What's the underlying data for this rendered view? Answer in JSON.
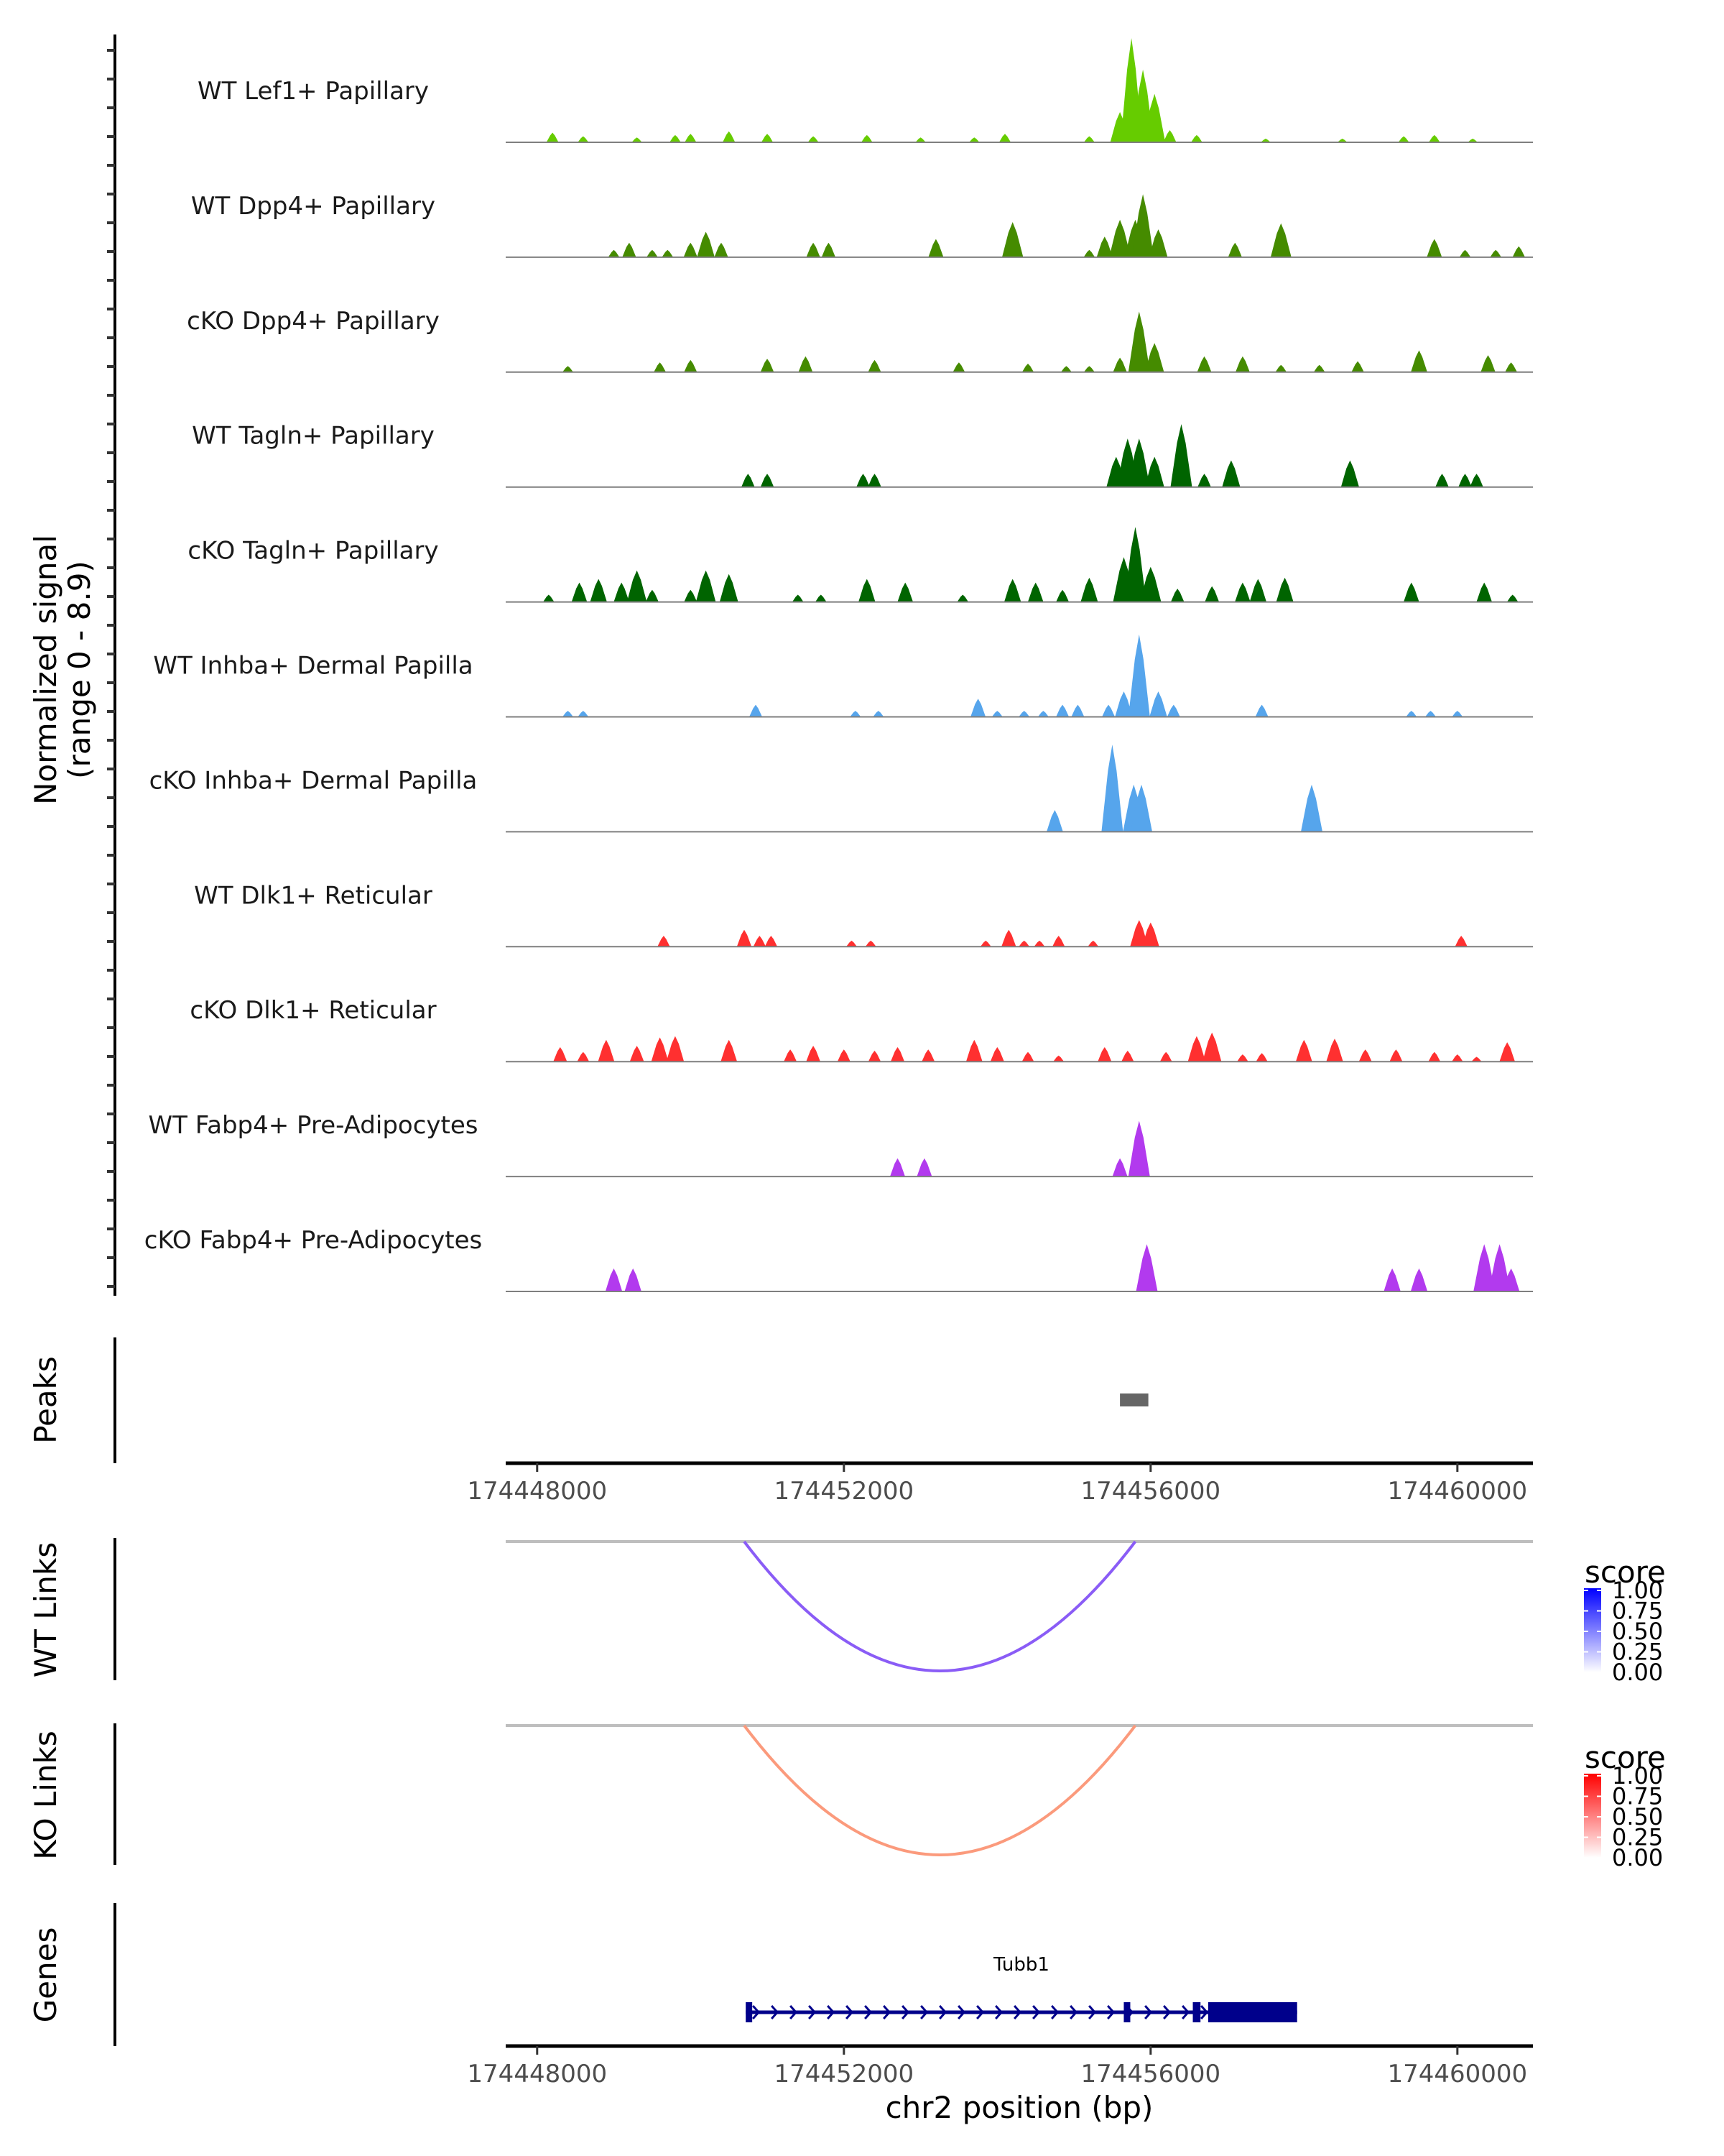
{
  "chart_data": {
    "type": "area",
    "title": "",
    "chromosome": "chr2",
    "xlabel": "chr2 position (bp)",
    "ylabel": "Normalized signal",
    "ylabel_sub": "(range 0 - 8.9)",
    "ylim": [
      0,
      8.9
    ],
    "xlim": [
      174447590,
      174460985
    ],
    "x_ticks": [
      174448000,
      174452000,
      174456000,
      174460000
    ],
    "x_tick_labels": [
      "174448000",
      "174452000",
      "174456000",
      "174460000"
    ],
    "coverage_tracks": [
      {
        "name": "WT Lef1+ Papillary",
        "color": "#66CC00",
        "peaks": [
          [
            174448200,
            0.8
          ],
          [
            174448600,
            0.5
          ],
          [
            174449300,
            0.4
          ],
          [
            174449800,
            0.6
          ],
          [
            174450000,
            0.7
          ],
          [
            174450500,
            0.9
          ],
          [
            174451000,
            0.7
          ],
          [
            174451600,
            0.5
          ],
          [
            174452300,
            0.6
          ],
          [
            174453000,
            0.4
          ],
          [
            174453700,
            0.4
          ],
          [
            174454100,
            0.7
          ],
          [
            174455200,
            0.5
          ],
          [
            174455600,
            2.5
          ],
          [
            174455750,
            8.6
          ],
          [
            174455900,
            6.0
          ],
          [
            174456050,
            4.0
          ],
          [
            174456250,
            1.0
          ],
          [
            174456600,
            0.6
          ],
          [
            174457500,
            0.3
          ],
          [
            174458500,
            0.3
          ],
          [
            174459300,
            0.5
          ],
          [
            174459700,
            0.6
          ],
          [
            174460200,
            0.3
          ]
        ]
      },
      {
        "name": "WT Dpp4+ Papillary",
        "color": "#458B00",
        "peaks": [
          [
            174449000,
            0.6
          ],
          [
            174449200,
            1.2
          ],
          [
            174449500,
            0.6
          ],
          [
            174449700,
            0.6
          ],
          [
            174450000,
            1.2
          ],
          [
            174450200,
            2.1
          ],
          [
            174450400,
            1.2
          ],
          [
            174451600,
            1.2
          ],
          [
            174451800,
            1.2
          ],
          [
            174453200,
            1.5
          ],
          [
            174454200,
            2.9
          ],
          [
            174455200,
            0.6
          ],
          [
            174455400,
            1.7
          ],
          [
            174455600,
            3.1
          ],
          [
            174455800,
            3.1
          ],
          [
            174455900,
            5.2
          ],
          [
            174456100,
            2.3
          ],
          [
            174457100,
            1.2
          ],
          [
            174457700,
            2.8
          ],
          [
            174459700,
            1.5
          ],
          [
            174460100,
            0.6
          ],
          [
            174460500,
            0.6
          ],
          [
            174460800,
            0.9
          ]
        ]
      },
      {
        "name": "cKO Dpp4+ Papillary",
        "color": "#458B00",
        "peaks": [
          [
            174448400,
            0.5
          ],
          [
            174449600,
            0.8
          ],
          [
            174450000,
            1.0
          ],
          [
            174451000,
            1.1
          ],
          [
            174451500,
            1.3
          ],
          [
            174452400,
            1.0
          ],
          [
            174453500,
            0.8
          ],
          [
            174454400,
            0.7
          ],
          [
            174454900,
            0.5
          ],
          [
            174455200,
            0.5
          ],
          [
            174455600,
            1.2
          ],
          [
            174455850,
            5.0
          ],
          [
            174456050,
            2.4
          ],
          [
            174456700,
            1.3
          ],
          [
            174457200,
            1.3
          ],
          [
            174457700,
            0.6
          ],
          [
            174458200,
            0.6
          ],
          [
            174458700,
            0.9
          ],
          [
            174459500,
            1.8
          ],
          [
            174460400,
            1.4
          ],
          [
            174460700,
            0.8
          ]
        ]
      },
      {
        "name": "WT Tagln+ Papillary",
        "color": "#006400",
        "peaks": [
          [
            174450750,
            1.1
          ],
          [
            174451000,
            1.1
          ],
          [
            174452250,
            1.1
          ],
          [
            174452400,
            1.1
          ],
          [
            174455550,
            2.5
          ],
          [
            174455700,
            4.0
          ],
          [
            174455850,
            4.0
          ],
          [
            174456050,
            2.5
          ],
          [
            174456400,
            5.2
          ],
          [
            174456700,
            1.1
          ],
          [
            174457050,
            2.2
          ],
          [
            174458600,
            2.2
          ],
          [
            174459800,
            1.1
          ],
          [
            174460100,
            1.1
          ],
          [
            174460250,
            1.1
          ]
        ]
      },
      {
        "name": "cKO Tagln+ Papillary",
        "color": "#006400",
        "peaks": [
          [
            174448150,
            0.6
          ],
          [
            174448550,
            1.6
          ],
          [
            174448800,
            1.9
          ],
          [
            174449100,
            1.6
          ],
          [
            174449300,
            2.6
          ],
          [
            174449500,
            1.0
          ],
          [
            174450000,
            1.0
          ],
          [
            174450200,
            2.6
          ],
          [
            174450500,
            2.3
          ],
          [
            174451400,
            0.6
          ],
          [
            174451700,
            0.6
          ],
          [
            174452300,
            1.9
          ],
          [
            174452800,
            1.6
          ],
          [
            174453550,
            0.6
          ],
          [
            174454200,
            1.9
          ],
          [
            174454500,
            1.6
          ],
          [
            174454850,
            1.0
          ],
          [
            174455200,
            2.0
          ],
          [
            174455650,
            3.7
          ],
          [
            174455800,
            6.2
          ],
          [
            174456000,
            2.9
          ],
          [
            174456350,
            1.1
          ],
          [
            174456800,
            1.3
          ],
          [
            174457200,
            1.6
          ],
          [
            174457400,
            1.9
          ],
          [
            174457750,
            2.0
          ],
          [
            174459400,
            1.6
          ],
          [
            174460350,
            1.6
          ],
          [
            174460720,
            0.6
          ]
        ]
      },
      {
        "name": "WT Inhba+ Dermal Papilla",
        "color": "#56A5EC",
        "peaks": [
          [
            174448400,
            0.5
          ],
          [
            174448600,
            0.5
          ],
          [
            174450850,
            1.0
          ],
          [
            174452150,
            0.5
          ],
          [
            174452450,
            0.5
          ],
          [
            174453750,
            1.5
          ],
          [
            174454000,
            0.5
          ],
          [
            174454350,
            0.5
          ],
          [
            174454600,
            0.5
          ],
          [
            174454850,
            1.0
          ],
          [
            174455050,
            1.0
          ],
          [
            174455450,
            1.0
          ],
          [
            174455650,
            2.1
          ],
          [
            174455850,
            6.8
          ],
          [
            174456100,
            2.1
          ],
          [
            174456300,
            1.0
          ],
          [
            174457450,
            1.0
          ],
          [
            174459400,
            0.5
          ],
          [
            174459650,
            0.5
          ],
          [
            174460000,
            0.5
          ]
        ]
      },
      {
        "name": "cKO Inhba+ Dermal Papilla",
        "color": "#56A5EC",
        "peaks": [
          [
            174454750,
            1.8
          ],
          [
            174455500,
            7.2
          ],
          [
            174455780,
            3.9
          ],
          [
            174455880,
            3.9
          ],
          [
            174458100,
            3.9
          ]
        ]
      },
      {
        "name": "WT Dlk1+ Reticular",
        "color": "#FF3030",
        "peaks": [
          [
            174449650,
            0.9
          ],
          [
            174450700,
            1.4
          ],
          [
            174450900,
            0.9
          ],
          [
            174451050,
            0.9
          ],
          [
            174452100,
            0.5
          ],
          [
            174452350,
            0.5
          ],
          [
            174453850,
            0.5
          ],
          [
            174454150,
            1.4
          ],
          [
            174454350,
            0.5
          ],
          [
            174454550,
            0.5
          ],
          [
            174454800,
            0.9
          ],
          [
            174455250,
            0.5
          ],
          [
            174455850,
            2.2
          ],
          [
            174456000,
            2.0
          ],
          [
            174460050,
            0.9
          ]
        ]
      },
      {
        "name": "cKO Dlk1+ Reticular",
        "color": "#FF3030",
        "peaks": [
          [
            174448300,
            1.2
          ],
          [
            174448600,
            0.8
          ],
          [
            174448900,
            1.8
          ],
          [
            174449300,
            1.3
          ],
          [
            174449600,
            2.0
          ],
          [
            174449800,
            2.1
          ],
          [
            174450500,
            1.8
          ],
          [
            174451300,
            1.0
          ],
          [
            174451600,
            1.3
          ],
          [
            174452000,
            1.0
          ],
          [
            174452400,
            0.9
          ],
          [
            174452700,
            1.2
          ],
          [
            174453100,
            1.0
          ],
          [
            174453700,
            1.8
          ],
          [
            174454000,
            1.2
          ],
          [
            174454400,
            0.8
          ],
          [
            174454800,
            0.5
          ],
          [
            174455400,
            1.2
          ],
          [
            174455700,
            0.9
          ],
          [
            174456200,
            0.8
          ],
          [
            174456600,
            2.1
          ],
          [
            174456800,
            2.4
          ],
          [
            174457200,
            0.6
          ],
          [
            174457450,
            0.7
          ],
          [
            174458000,
            1.8
          ],
          [
            174458400,
            1.9
          ],
          [
            174458800,
            1.0
          ],
          [
            174459200,
            1.0
          ],
          [
            174459700,
            0.8
          ],
          [
            174460000,
            0.6
          ],
          [
            174460250,
            0.4
          ],
          [
            174460650,
            1.6
          ]
        ]
      },
      {
        "name": "WT Fabp4+ Pre-Adipocytes",
        "color": "#B23AEE",
        "peaks": [
          [
            174452700,
            1.5
          ],
          [
            174453050,
            1.5
          ],
          [
            174455600,
            1.5
          ],
          [
            174455850,
            4.6
          ]
        ]
      },
      {
        "name": "cKO Fabp4+ Pre-Adipocytes",
        "color": "#B23AEE",
        "peaks": [
          [
            174449000,
            1.9
          ],
          [
            174449250,
            1.9
          ],
          [
            174455950,
            3.9
          ],
          [
            174459150,
            1.9
          ],
          [
            174459500,
            1.9
          ],
          [
            174460350,
            3.9
          ],
          [
            174460550,
            3.9
          ],
          [
            174460700,
            1.9
          ]
        ]
      }
    ],
    "peaks_track": {
      "label": "Peaks",
      "color": "#666666",
      "regions": [
        [
          174455600,
          174455970
        ]
      ]
    },
    "link_tracks": [
      {
        "label": "WT Links",
        "links": [
          {
            "start": 174450700,
            "end": 174455800,
            "score": 0.65
          }
        ],
        "legend": {
          "title": "score",
          "ticks": [
            "1.00",
            "0.75",
            "0.50",
            "0.25",
            "0.00"
          ],
          "low": "#FFFFFF",
          "high": "#0000FF"
        }
      },
      {
        "label": "KO Links",
        "links": [
          {
            "start": 174450700,
            "end": 174455800,
            "score": 0.5
          }
        ],
        "legend": {
          "title": "score",
          "ticks": [
            "1.00",
            "0.75",
            "0.50",
            "0.25",
            "0.00"
          ],
          "low": "#FFFFFF",
          "high": "#FF0000"
        }
      }
    ],
    "genes_track": {
      "label": "Genes",
      "color": "#00008B",
      "genes": [
        {
          "name": "Tubb1",
          "strand": "+",
          "start": 174450720,
          "end": 174457910,
          "exons": [
            [
              174450720,
              174450800
            ],
            [
              174455650,
              174455730
            ],
            [
              174456550,
              174456650
            ],
            [
              174456750,
              174457910
            ]
          ]
        }
      ]
    },
    "grid": false,
    "legend_position": "right"
  }
}
